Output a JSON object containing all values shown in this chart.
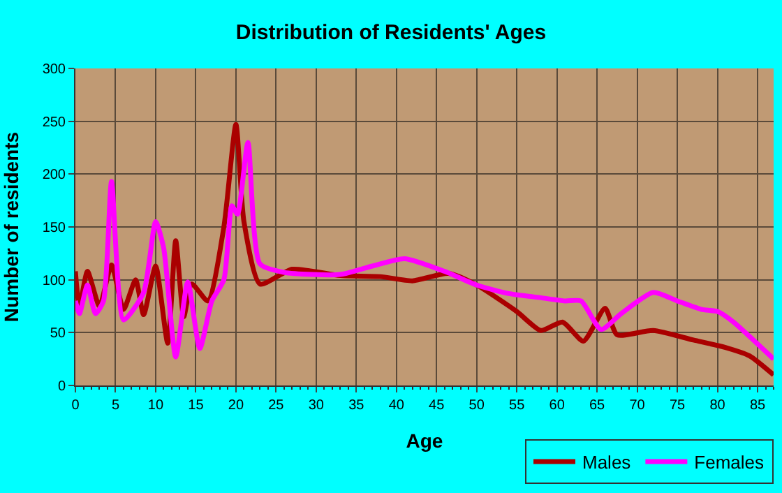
{
  "chart_data": {
    "type": "line",
    "title": "Distribution of Residents' Ages",
    "xlabel": "Age",
    "ylabel": "Number of residents",
    "xlim": [
      0,
      87
    ],
    "xticks": [
      0,
      5,
      10,
      15,
      20,
      25,
      30,
      35,
      40,
      45,
      50,
      55,
      60,
      65,
      70,
      75,
      80,
      85
    ],
    "ylim": [
      0,
      300
    ],
    "yticks": [
      0,
      50,
      100,
      150,
      200,
      250,
      300
    ],
    "grid": true,
    "legend": "bottom right",
    "marker": "none",
    "line_style": "solid",
    "series": [
      {
        "name": "Males",
        "color": "#aa0000",
        "x": [
          0,
          0.5,
          1.5,
          3,
          4.5,
          6,
          7.5,
          8.5,
          10,
          11.5,
          12.5,
          13.5,
          14.5,
          16.5,
          18.5,
          20,
          21,
          23,
          27,
          33,
          38,
          42,
          46.5,
          50,
          55,
          58,
          60.7,
          63.3,
          66,
          67.5,
          72,
          77,
          81,
          84,
          87
        ],
        "values": [
          108,
          75,
          108,
          75,
          114,
          72,
          100,
          67,
          113,
          40,
          137,
          65,
          96,
          80,
          150,
          247,
          155,
          96,
          110,
          104,
          103,
          99,
          106,
          95,
          70,
          52,
          60,
          42,
          73,
          48,
          52,
          43,
          36,
          28,
          10
        ]
      },
      {
        "name": "Females",
        "color": "#ff00ff",
        "x": [
          0,
          0.5,
          1.5,
          2.5,
          3.5,
          4.5,
          6,
          8.5,
          10,
          11,
          12.5,
          14,
          15.5,
          17,
          18.5,
          19.5,
          20.2,
          21.5,
          23,
          26,
          33,
          37,
          41,
          46,
          50,
          54,
          58,
          61,
          63,
          65.5,
          68,
          72,
          75,
          78,
          80,
          82,
          87
        ],
        "values": [
          80,
          68,
          95,
          68,
          80,
          193,
          62,
          88,
          155,
          130,
          27,
          98,
          35,
          80,
          100,
          170,
          162,
          230,
          115,
          107,
          105,
          113,
          120,
          108,
          95,
          87,
          83,
          80,
          80,
          53,
          68,
          88,
          80,
          72,
          70,
          60,
          25
        ]
      }
    ]
  }
}
